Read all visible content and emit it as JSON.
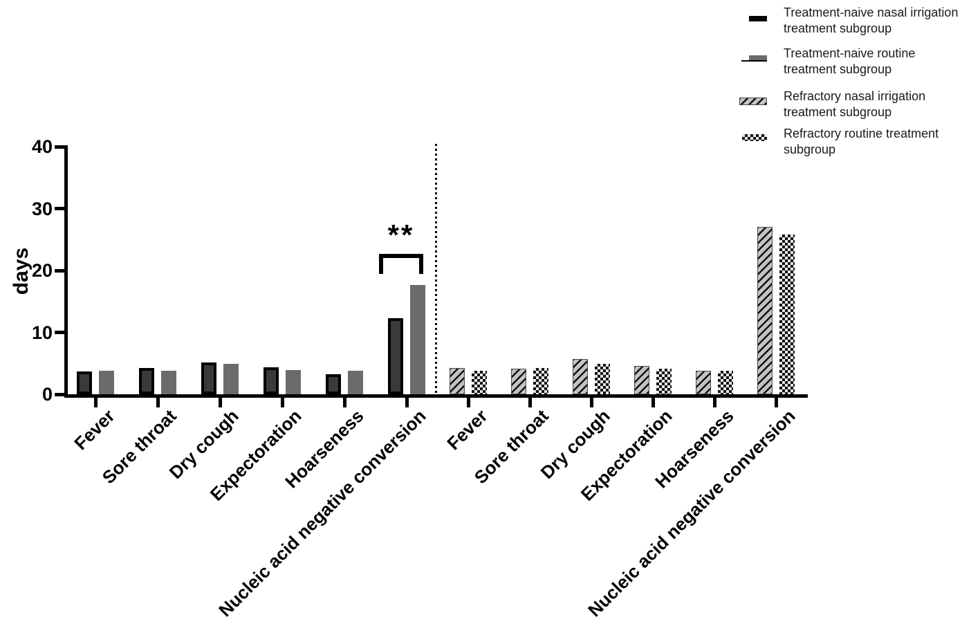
{
  "chart_data": {
    "type": "bar",
    "title": "",
    "ylabel": "days",
    "ylim": [
      0,
      40
    ],
    "yticks": [
      0,
      10,
      20,
      30,
      40
    ],
    "grid": false,
    "legend_position": "top-right",
    "categories": [
      "Fever",
      "Sore throat",
      "Dry cough",
      "Expectoration",
      "Hoarseness",
      "Nucleic acid negative conversion"
    ],
    "groups": [
      {
        "series": [
          {
            "name": "Treatment-naive nasal irrigation treatment subgroup",
            "style": "solid-black",
            "values": [
              3.7,
              4.3,
              5.1,
              4.4,
              3.2,
              12.3
            ]
          },
          {
            "name": "Treatment-naive routine treatment subgroup",
            "style": "solid-gray",
            "values": [
              3.8,
              3.8,
              4.9,
              3.9,
              3.8,
              17.6
            ]
          }
        ]
      },
      {
        "series": [
          {
            "name": "Refractory nasal irrigation treatment subgroup",
            "style": "hatched",
            "values": [
              4.2,
              4.1,
              5.7,
              4.6,
              3.8,
              27.0
            ]
          },
          {
            "name": "Refractory routine treatment subgroup",
            "style": "checkered",
            "values": [
              3.8,
              4.2,
              4.9,
              4.1,
              3.8,
              25.8
            ]
          }
        ]
      }
    ],
    "annotations": [
      {
        "type": "significance-bracket",
        "label": "**",
        "group_index": 0,
        "category": "Nucleic acid negative conversion",
        "between": [
          "Treatment-naive nasal irrigation treatment subgroup",
          "Treatment-naive routine treatment subgroup"
        ]
      }
    ],
    "separator": {
      "type": "dotted-vertical-line",
      "between_groups": true
    }
  },
  "legend": {
    "items": [
      {
        "swatch": "solid-black",
        "lines": [
          "Treatment-naive nasal irrigation",
          "treatment subgroup"
        ]
      },
      {
        "swatch": "solid-gray",
        "lines": [
          "Treatment-naive routine",
          "treatment subgroup"
        ]
      },
      {
        "swatch": "hatched",
        "lines": [
          "Refractory nasal irrigation",
          "treatment subgroup"
        ]
      },
      {
        "swatch": "checkered",
        "lines": [
          "Refractory routine treatment",
          "subgroup"
        ]
      }
    ]
  },
  "colors": {
    "axis": "#000000",
    "text": "#000000",
    "series1_fill": "#3a3a3a",
    "series1_border": "#000000",
    "series2_fill": "#6b6b6b",
    "hatch_bg": "#c3c3c3",
    "hatch_stripe": "#111111",
    "check_dark": "#111111",
    "check_light": "#e8e8e8"
  }
}
